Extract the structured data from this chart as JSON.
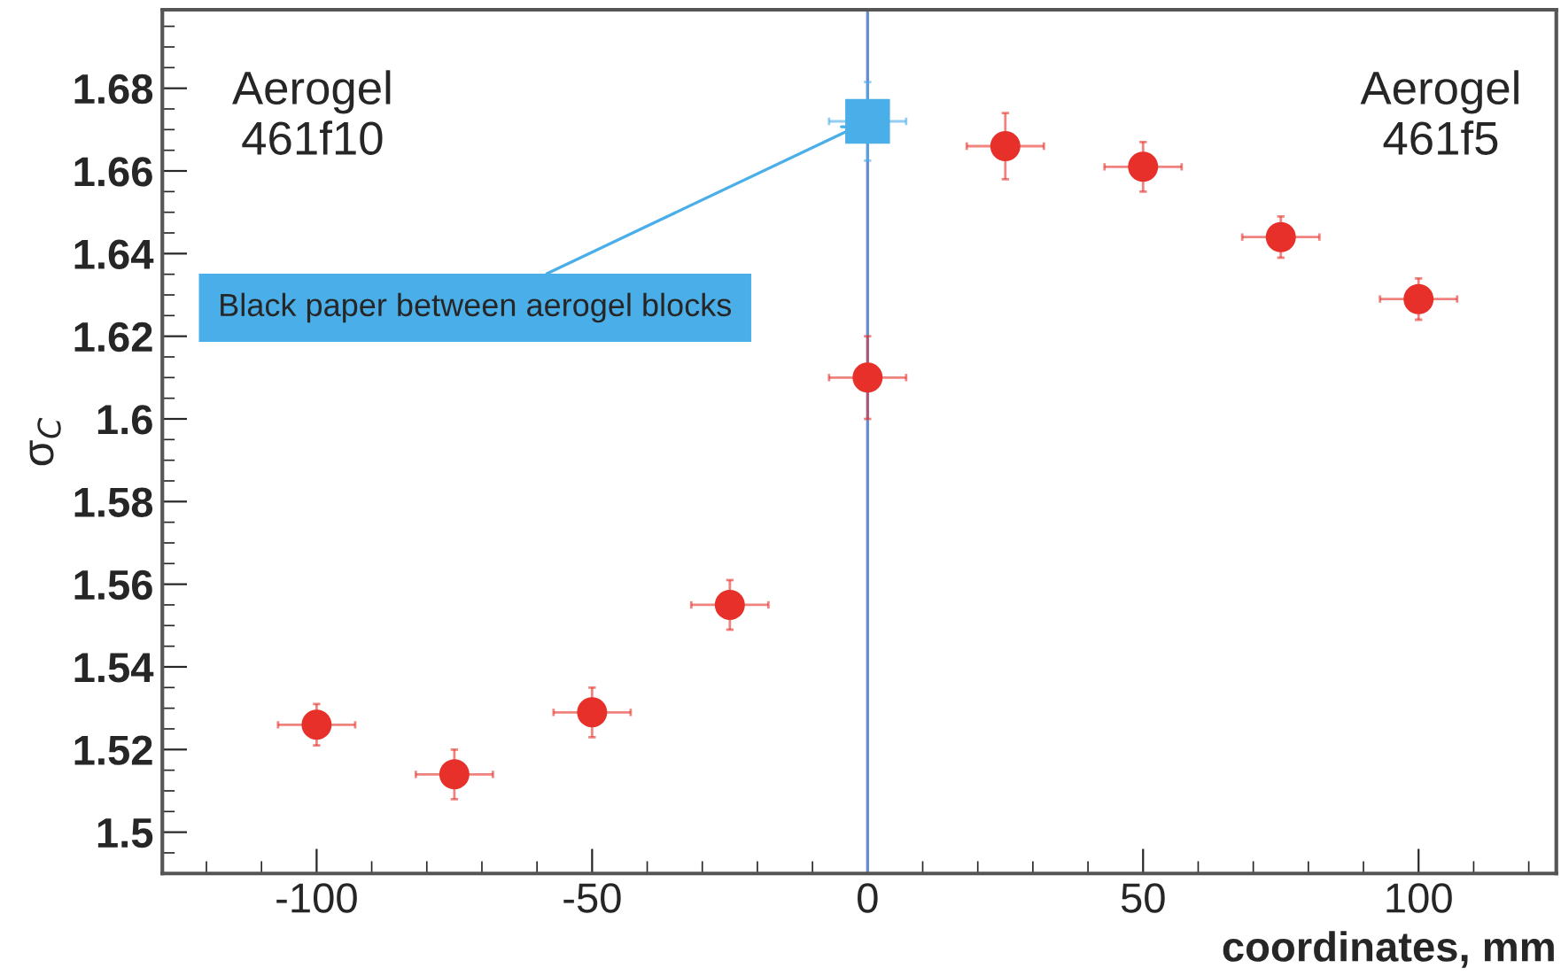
{
  "chart_data": {
    "type": "scatter",
    "xlabel": "coordinates, mm",
    "ylabel": "σ$_{C}$",
    "xlim": [
      -128,
      125
    ],
    "ylim": [
      1.49,
      1.699
    ],
    "xticks": [
      -100,
      -50,
      0,
      50,
      100
    ],
    "yticks": [
      1.5,
      1.52,
      1.54,
      1.56,
      1.58,
      1.6,
      1.62,
      1.64,
      1.66,
      1.68
    ],
    "grid": false,
    "series": [
      {
        "color": "#e8302a",
        "marker": "circle",
        "x": [
          -100,
          -75,
          -50,
          -25,
          0,
          25,
          50,
          75,
          100
        ],
        "values": [
          1.526,
          1.514,
          1.529,
          1.555,
          1.61,
          1.666,
          1.661,
          1.644,
          1.629
        ],
        "errors": [
          0.005,
          0.006,
          0.006,
          0.006,
          0.01,
          0.008,
          0.006,
          0.005,
          0.005
        ],
        "xerrors": [
          7,
          7,
          7,
          7,
          7,
          7,
          7,
          7,
          7
        ]
      },
      {
        "color": "#4aaee8",
        "marker": "square",
        "x": [
          0
        ],
        "values": [
          1.672
        ],
        "errors": [
          0.0095
        ],
        "xerrors": [
          7
        ]
      }
    ],
    "ref_lines": [
      {
        "axis": "x",
        "value": 0,
        "color": "#6a8ad4"
      }
    ],
    "annotations": [
      {
        "text": "Black paper between aerogel blocks",
        "x": 0,
        "y": 1.672
      },
      "Aerogel\n461f10",
      "Aerogel\n461f5"
    ]
  }
}
